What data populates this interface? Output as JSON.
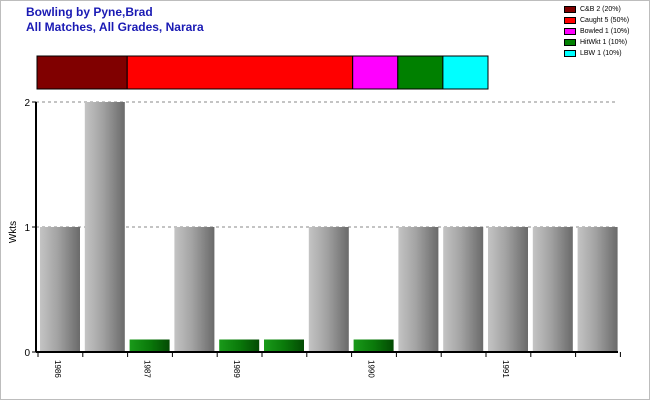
{
  "title": "Bowling by Pyne,Brad",
  "subtitle": "All Matches, All Grades, Narara",
  "legend": [
    {
      "label": "C&B 2 (20%)",
      "color": "#800000"
    },
    {
      "label": "Caught 5 (50%)",
      "color": "#ff0000"
    },
    {
      "label": "Bowled 1 (10%)",
      "color": "#ff00ff"
    },
    {
      "label": "HitWkt 1 (10%)",
      "color": "#008000"
    },
    {
      "label": "LBW 1 (10%)",
      "color": "#00ffff"
    }
  ],
  "chart_data": {
    "type": "bar",
    "ylabel": "Wkts",
    "ylim": [
      0,
      2
    ],
    "yticks": [
      0,
      1,
      2
    ],
    "grid": true,
    "values": [
      1,
      2,
      0.1,
      1,
      0.1,
      0.1,
      1,
      0.1,
      1,
      1,
      1,
      1,
      1
    ],
    "bar_kind": [
      "wkts",
      "wkts",
      "zero",
      "wkts",
      "zero",
      "zero",
      "wkts",
      "zero",
      "wkts",
      "wkts",
      "wkts",
      "wkts",
      "wkts"
    ],
    "season_labels": [
      {
        "label": "1986",
        "bar": 0
      },
      {
        "label": "1987",
        "bar": 2
      },
      {
        "label": "1989",
        "bar": 4
      },
      {
        "label": "1990",
        "bar": 7
      },
      {
        "label": "1991",
        "bar": 10
      }
    ],
    "dismissals": [
      {
        "type": "C&B",
        "count": 2,
        "color": "#800000"
      },
      {
        "type": "Caught",
        "count": 5,
        "color": "#ff0000"
      },
      {
        "type": "Bowled",
        "count": 1,
        "color": "#ff00ff"
      },
      {
        "type": "HitWkt",
        "count": 1,
        "color": "#008000"
      },
      {
        "type": "LBW",
        "count": 1,
        "color": "#00ffff"
      }
    ]
  }
}
